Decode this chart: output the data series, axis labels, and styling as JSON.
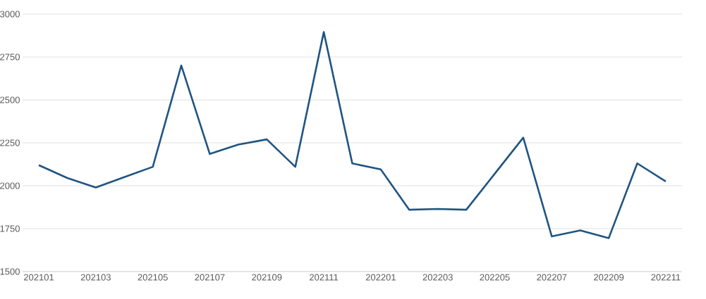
{
  "chart_data": {
    "type": "line",
    "categories": [
      "202101",
      null,
      "202103",
      null,
      "202105",
      null,
      "202107",
      null,
      "202109",
      null,
      "202111",
      null,
      "202201",
      null,
      "202203",
      null,
      "202205",
      null,
      "202207",
      null,
      "202209",
      null,
      "202211"
    ],
    "values": [
      2120,
      2045,
      1990,
      2050,
      2110,
      2700,
      2185,
      2240,
      2270,
      2110,
      2895,
      2130,
      2095,
      1860,
      1865,
      1860,
      2070,
      2280,
      1705,
      1740,
      1695,
      2130,
      2025
    ],
    "color": "#1f5582",
    "ylim": [
      1500,
      3000
    ],
    "yticks": [
      1500,
      1750,
      2000,
      2250,
      2500,
      2750,
      3000
    ],
    "grid": "y",
    "marker": "none",
    "line_style": "solid"
  }
}
